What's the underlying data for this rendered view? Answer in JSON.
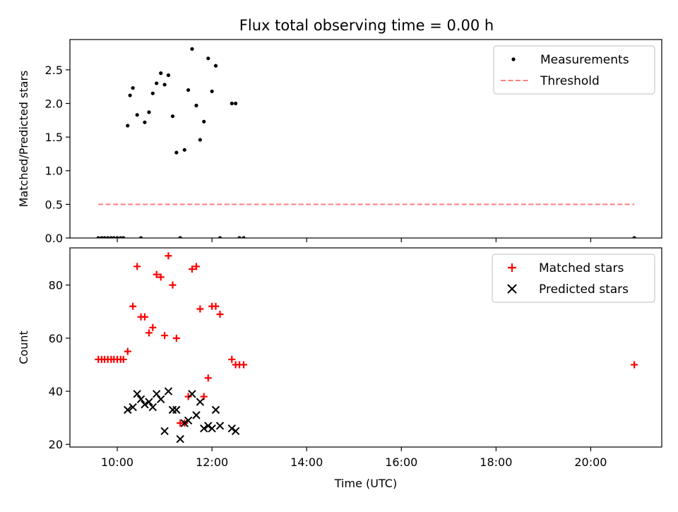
{
  "chart_data": [
    {
      "type": "scatter",
      "title": "Flux total observing time = 0.00 h",
      "ylabel": "Matched/Predicted stars",
      "xlabel": "",
      "x_unit": "hours UTC",
      "xlim": [
        9.0,
        21.5
      ],
      "ylim": [
        0,
        2.95
      ],
      "yticks": [
        "0.0",
        "0.5",
        "1.0",
        "1.5",
        "2.0",
        "2.5"
      ],
      "xticks": [
        10,
        12,
        14,
        16,
        18,
        20
      ],
      "legend": "top-right",
      "series": [
        {
          "name": "Measurements",
          "marker": "dot",
          "color": "#000000",
          "x": [
            9.6,
            9.67,
            9.73,
            9.8,
            9.87,
            9.93,
            10.0,
            10.07,
            10.13,
            10.22,
            10.27,
            10.33,
            10.42,
            10.5,
            10.58,
            10.67,
            10.75,
            10.83,
            10.92,
            11.0,
            11.08,
            11.17,
            11.25,
            11.33,
            11.42,
            11.5,
            11.58,
            11.67,
            11.75,
            11.83,
            11.92,
            12.0,
            12.08,
            12.17,
            12.42,
            12.5,
            12.58,
            12.67,
            20.92
          ],
          "y": [
            0,
            0,
            0,
            0,
            0,
            0,
            0,
            0,
            0,
            1.67,
            2.12,
            2.23,
            1.83,
            0,
            1.72,
            1.87,
            2.15,
            2.3,
            2.45,
            2.28,
            2.42,
            1.81,
            1.27,
            0,
            1.31,
            2.2,
            2.81,
            1.97,
            1.46,
            1.73,
            2.67,
            2.18,
            2.56,
            0,
            2.0,
            2.0,
            0,
            0,
            0
          ]
        },
        {
          "name": "Threshold",
          "line": "dashed",
          "color": "#ff7f7f",
          "x": [
            9.6,
            20.92
          ],
          "y": [
            0.5,
            0.5
          ]
        }
      ]
    },
    {
      "type": "scatter",
      "title": "",
      "ylabel": "Count",
      "xlabel": "Time (UTC)",
      "x_unit": "hours UTC",
      "xlim": [
        9.0,
        21.5
      ],
      "ylim": [
        19,
        94
      ],
      "yticks": [
        "20",
        "40",
        "60",
        "80"
      ],
      "xticks": [
        "10:00",
        "12:00",
        "14:00",
        "16:00",
        "18:00",
        "20:00"
      ],
      "legend": "top-right",
      "series": [
        {
          "name": "Matched stars",
          "marker": "plus",
          "color": "#ff0000",
          "x": [
            9.6,
            9.67,
            9.73,
            9.8,
            9.87,
            9.93,
            10.0,
            10.07,
            10.13,
            10.22,
            10.33,
            10.42,
            10.5,
            10.58,
            10.67,
            10.75,
            10.83,
            10.92,
            11.0,
            11.08,
            11.17,
            11.25,
            11.33,
            11.42,
            11.5,
            11.58,
            11.67,
            11.75,
            11.83,
            11.92,
            12.0,
            12.08,
            12.17,
            12.42,
            12.5,
            12.58,
            12.67,
            20.92
          ],
          "y": [
            52,
            52,
            52,
            52,
            52,
            52,
            52,
            52,
            52,
            55,
            72,
            87,
            68,
            68,
            62,
            64,
            84,
            83,
            61,
            91,
            80,
            60,
            28,
            28,
            38,
            86,
            87,
            71,
            38,
            45,
            72,
            72,
            69,
            52,
            50,
            50,
            50,
            50
          ]
        },
        {
          "name": "Predicted stars",
          "marker": "x",
          "color": "#000000",
          "x": [
            10.22,
            10.33,
            10.42,
            10.5,
            10.58,
            10.67,
            10.75,
            10.83,
            10.92,
            11.0,
            11.08,
            11.17,
            11.25,
            11.33,
            11.42,
            11.5,
            11.58,
            11.67,
            11.75,
            11.83,
            11.92,
            12.0,
            12.08,
            12.17,
            12.42,
            12.5
          ],
          "y": [
            33,
            34,
            39,
            37,
            35,
            36,
            34,
            39,
            37,
            25,
            40,
            33,
            33,
            22,
            28,
            29,
            39,
            31,
            36,
            26,
            27,
            26,
            33,
            27,
            26,
            25
          ]
        }
      ]
    }
  ]
}
